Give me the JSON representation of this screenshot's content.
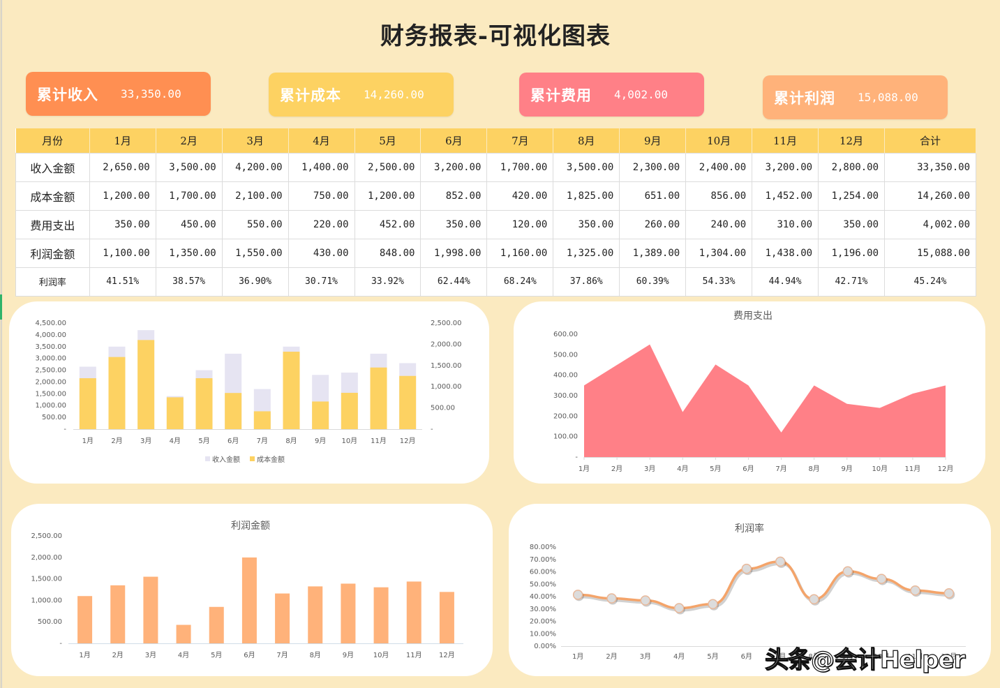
{
  "header": {
    "title": "财务报表-可视化图表"
  },
  "kpis": [
    {
      "label": "累计收入",
      "value": "33,350.00",
      "color": "#ff8f52"
    },
    {
      "label": "累计成本",
      "value": "14,260.00",
      "color": "#fdd262"
    },
    {
      "label": "累计费用",
      "value": "4,002.00",
      "color": "#ff8087"
    },
    {
      "label": "累计利润",
      "value": "15,088.00",
      "color": "#ffb27a"
    }
  ],
  "table": {
    "headers": [
      "月份",
      "1月",
      "2月",
      "3月",
      "4月",
      "5月",
      "6月",
      "7月",
      "8月",
      "9月",
      "10月",
      "11月",
      "12月",
      "合计"
    ],
    "rows": [
      {
        "label": "收入金额",
        "values": [
          "2,650.00",
          "3,500.00",
          "4,200.00",
          "1,400.00",
          "2,500.00",
          "3,200.00",
          "1,700.00",
          "3,500.00",
          "2,300.00",
          "2,400.00",
          "3,200.00",
          "2,800.00",
          "33,350.00"
        ]
      },
      {
        "label": "成本金额",
        "values": [
          "1,200.00",
          "1,700.00",
          "2,100.00",
          "750.00",
          "1,200.00",
          "852.00",
          "420.00",
          "1,825.00",
          "651.00",
          "856.00",
          "1,452.00",
          "1,254.00",
          "14,260.00"
        ]
      },
      {
        "label": "费用支出",
        "values": [
          "350.00",
          "450.00",
          "550.00",
          "220.00",
          "452.00",
          "350.00",
          "120.00",
          "350.00",
          "260.00",
          "240.00",
          "310.00",
          "350.00",
          "4,002.00"
        ]
      },
      {
        "label": "利润金额",
        "values": [
          "1,100.00",
          "1,350.00",
          "1,550.00",
          "430.00",
          "848.00",
          "1,998.00",
          "1,160.00",
          "1,325.00",
          "1,389.00",
          "1,304.00",
          "1,438.00",
          "1,196.00",
          "15,088.00"
        ]
      },
      {
        "label": "利润率",
        "values": [
          "41.51%",
          "38.57%",
          "36.90%",
          "30.71%",
          "33.92%",
          "62.44%",
          "68.24%",
          "37.86%",
          "60.39%",
          "54.33%",
          "44.94%",
          "42.71%",
          "45.24%"
        ]
      }
    ]
  },
  "chart_data": [
    {
      "type": "bar",
      "title": "",
      "categories": [
        "1月",
        "2月",
        "3月",
        "4月",
        "5月",
        "6月",
        "7月",
        "8月",
        "9月",
        "10月",
        "11月",
        "12月"
      ],
      "series": [
        {
          "name": "收入金额",
          "axis": "left",
          "color": "#e6e4f2",
          "values": [
            2650,
            3500,
            4200,
            1400,
            2500,
            3200,
            1700,
            3500,
            2300,
            2400,
            3200,
            2800
          ]
        },
        {
          "name": "成本金额",
          "axis": "right",
          "color": "#fdd262",
          "values": [
            1200,
            1700,
            2100,
            750,
            1200,
            852,
            420,
            1825,
            651,
            856,
            1452,
            1254
          ]
        }
      ],
      "ylim": [
        0,
        4500
      ],
      "y2lim": [
        0,
        2500
      ],
      "yticks": [
        "-",
        "500.00",
        "1,000.00",
        "1,500.00",
        "2,000.00",
        "2,500.00",
        "3,000.00",
        "3,500.00",
        "4,000.00",
        "4,500.00"
      ],
      "y2ticks": [
        "-",
        "500.00",
        "1,000.00",
        "1,500.00",
        "2,000.00",
        "2,500.00"
      ],
      "legend": [
        "收入金额",
        "成本金额"
      ],
      "legend_position": "bottom"
    },
    {
      "type": "area",
      "title": "费用支出",
      "categories": [
        "1月",
        "2月",
        "3月",
        "4月",
        "5月",
        "6月",
        "7月",
        "8月",
        "9月",
        "10月",
        "11月",
        "12月"
      ],
      "values": [
        350,
        450,
        550,
        220,
        452,
        350,
        120,
        350,
        260,
        240,
        310,
        350
      ],
      "color": "#ff8087",
      "ylim": [
        0,
        600
      ],
      "yticks": [
        "-",
        "100.00",
        "200.00",
        "300.00",
        "400.00",
        "500.00",
        "600.00"
      ]
    },
    {
      "type": "bar",
      "title": "利润金额",
      "categories": [
        "1月",
        "2月",
        "3月",
        "4月",
        "5月",
        "6月",
        "7月",
        "8月",
        "9月",
        "10月",
        "11月",
        "12月"
      ],
      "values": [
        1100,
        1350,
        1550,
        430,
        848,
        1998,
        1160,
        1325,
        1389,
        1304,
        1438,
        1196
      ],
      "color": "#ffb27a",
      "ylim": [
        0,
        2500
      ],
      "yticks": [
        "-",
        "500.00",
        "1,000.00",
        "1,500.00",
        "2,000.00",
        "2,500.00"
      ]
    },
    {
      "type": "line",
      "title": "利润率",
      "categories": [
        "1月",
        "2月",
        "3月",
        "4月",
        "5月",
        "6月",
        "7月",
        "8月",
        "9月",
        "10月",
        "11月",
        "12月"
      ],
      "values": [
        41.51,
        38.57,
        36.9,
        30.71,
        33.92,
        62.44,
        68.24,
        37.86,
        60.39,
        54.33,
        44.94,
        42.71
      ],
      "color": "#f4a46a",
      "marker_color": "#dcdcdc",
      "ylim": [
        0,
        80
      ],
      "yticks": [
        "0.00%",
        "10.00%",
        "20.00%",
        "30.00%",
        "40.00%",
        "50.00%",
        "60.00%",
        "70.00%",
        "80.00%"
      ]
    }
  ],
  "watermark": "头条@会计Helper"
}
